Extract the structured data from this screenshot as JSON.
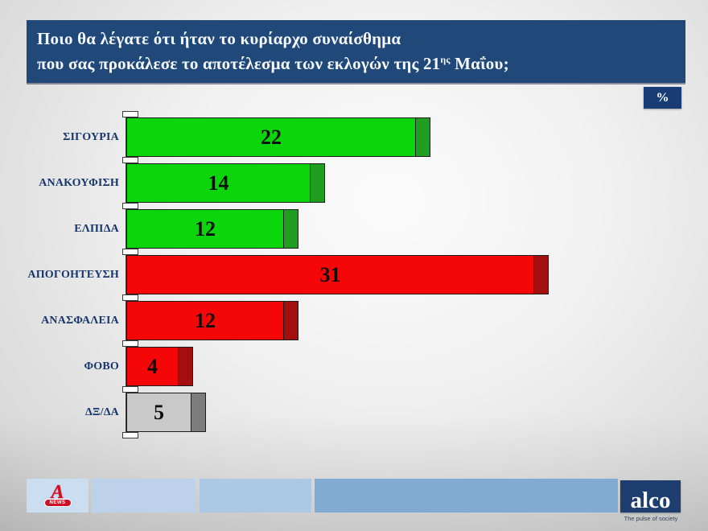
{
  "header": {
    "title_line1": "Ποιο θα λέγατε ότι ήταν το κυρίαρχο συναίσθημα",
    "title_line2_pre": "που σας προκάλεσε το αποτέλεσμα των εκλογών της 21",
    "title_line2_sup": "ης",
    "title_line2_post": " Μαΐου;",
    "bg_color": "#20497A"
  },
  "unit_badge": {
    "label": "%",
    "bg_color": "#173D74"
  },
  "chart_data": {
    "type": "bar",
    "orientation": "horizontal",
    "unit": "%",
    "title": "Ποιο θα λέγατε ότι ήταν το κυρίαρχο συναίσθημα που σας προκάλεσε το αποτέλεσμα των εκλογών της 21ης Μαΐου;",
    "categories": [
      "ΣΙΓΟΥΡΙΑ",
      "ΑΝΑΚΟΥΦΙΣΗ",
      "ΕΛΠΙΔΑ",
      "ΑΠΟΓΟΗΤΕΥΣΗ",
      "ΑΝΑΣΦΑΛΕΙΑ",
      "ΦΟΒΟ",
      "ΔΞ/ΔΑ"
    ],
    "values": [
      22,
      14,
      12,
      31,
      12,
      4,
      5
    ],
    "bar_colors": [
      "#0bd60b",
      "#0bd60b",
      "#0bd60b",
      "#f50707",
      "#f50707",
      "#f50707",
      "#c9c9c9"
    ],
    "cap_colors": [
      "#1f9e1f",
      "#1f9e1f",
      "#1f9e1f",
      "#a30f0f",
      "#a30f0f",
      "#a30f0f",
      "#7d7d7d"
    ],
    "value_labels_inside": true,
    "xlim": [
      0,
      42
    ],
    "grid": false,
    "legend": false
  },
  "footer": {
    "alpha_logo_letter": "A",
    "alpha_news_label": "NEWS",
    "alco_logo_text": "alco",
    "alco_tagline": "The pulse of society",
    "band_colors": [
      "#cbddf0",
      "#bdd2ea",
      "#acc8e5",
      "#82abd3"
    ]
  }
}
